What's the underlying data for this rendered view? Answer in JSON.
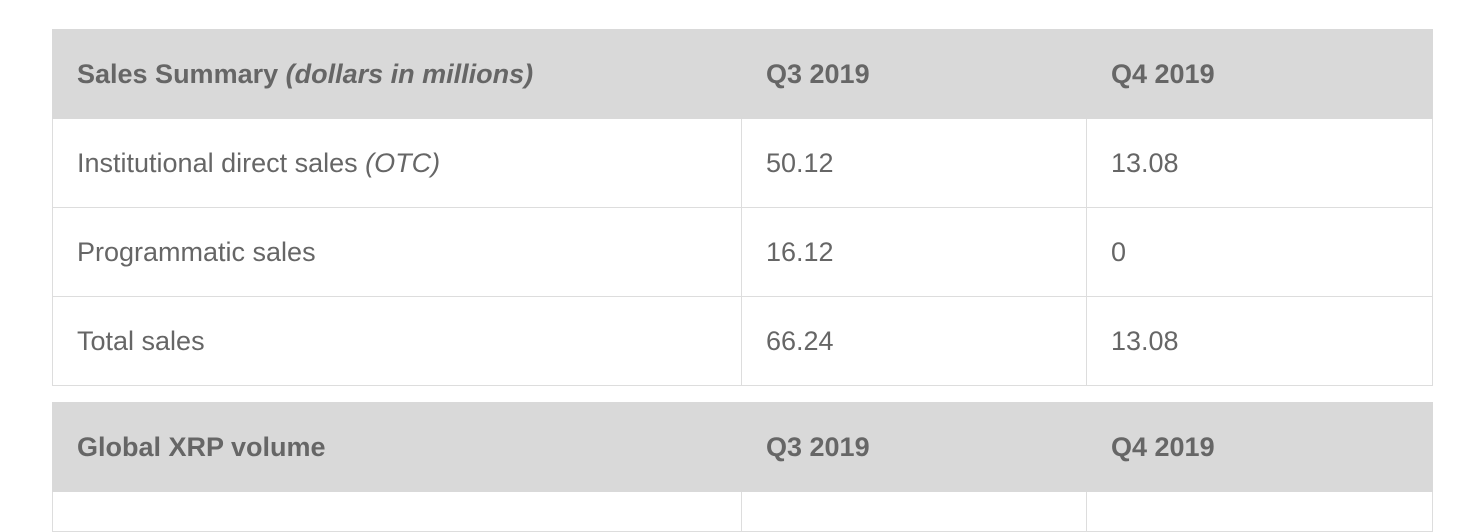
{
  "tables": [
    {
      "header": [
        {
          "text": "Sales Summary",
          "note": "(dollars in millions)"
        },
        {
          "text": "Q3 2019"
        },
        {
          "text": "Q4 2019"
        }
      ],
      "rows": [
        [
          {
            "text": "Institutional direct sales",
            "note": "(OTC)"
          },
          {
            "text": "50.12"
          },
          {
            "text": "13.08"
          }
        ],
        [
          {
            "text": "Programmatic sales"
          },
          {
            "text": "16.12"
          },
          {
            "text": "0"
          }
        ],
        [
          {
            "text": "Total sales"
          },
          {
            "text": "66.24"
          },
          {
            "text": "13.08"
          }
        ]
      ]
    },
    {
      "header": [
        {
          "text": "Global XRP volume"
        },
        {
          "text": "Q3 2019"
        },
        {
          "text": "Q4 2019"
        }
      ],
      "rows": []
    }
  ]
}
